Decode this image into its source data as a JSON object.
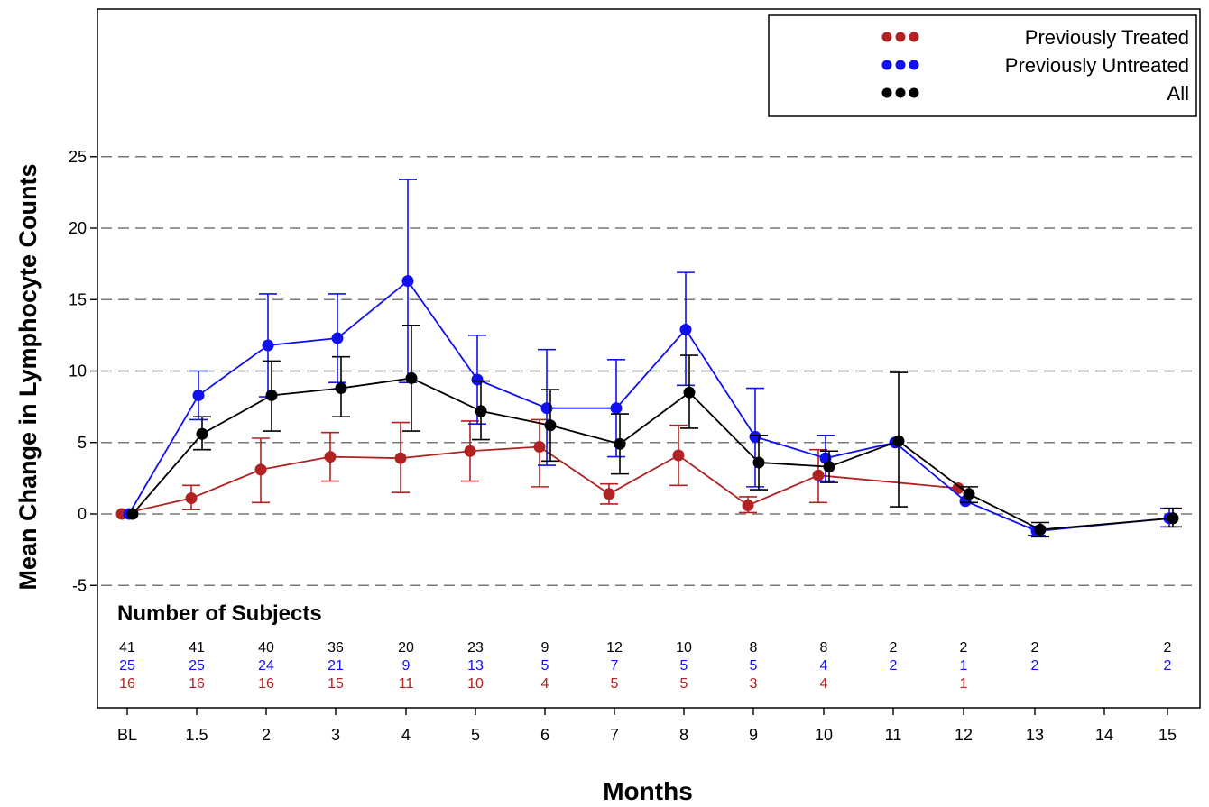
{
  "chart_data": {
    "type": "line",
    "xlabel": "Months",
    "ylabel": "Mean Change in Lymphocyte Counts",
    "ylim": [
      -5,
      25
    ],
    "yticks": [
      -5,
      0,
      5,
      10,
      15,
      20,
      25
    ],
    "categories": [
      "BL",
      "1.5",
      "2",
      "3",
      "4",
      "5",
      "6",
      "7",
      "8",
      "9",
      "10",
      "11",
      "12",
      "13",
      "14",
      "15"
    ],
    "grid": "horizontal dashed",
    "legend_position": "top-right",
    "series": [
      {
        "name": "Previously Treated",
        "color": "#b22222",
        "points": [
          {
            "x": "BL",
            "y": 0,
            "lo": 0,
            "hi": 0
          },
          {
            "x": "1.5",
            "y": 1.1,
            "lo": 0.3,
            "hi": 2.0
          },
          {
            "x": "2",
            "y": 3.1,
            "lo": 0.8,
            "hi": 5.3
          },
          {
            "x": "3",
            "y": 4.0,
            "lo": 2.3,
            "hi": 5.7
          },
          {
            "x": "4",
            "y": 3.9,
            "lo": 1.5,
            "hi": 6.4
          },
          {
            "x": "5",
            "y": 4.4,
            "lo": 2.3,
            "hi": 6.5
          },
          {
            "x": "6",
            "y": 4.7,
            "lo": 1.9,
            "hi": 6.6
          },
          {
            "x": "7",
            "y": 1.4,
            "lo": 0.7,
            "hi": 2.1
          },
          {
            "x": "8",
            "y": 4.1,
            "lo": 2.0,
            "hi": 6.2
          },
          {
            "x": "9",
            "y": 0.6,
            "lo": 0.1,
            "hi": 1.2
          },
          {
            "x": "10",
            "y": 2.7,
            "lo": 0.8,
            "hi": 4.5
          },
          {
            "x": "12",
            "y": 1.8,
            "lo": 1.8,
            "hi": 1.8
          }
        ]
      },
      {
        "name": "Previously Untreated",
        "color": "#1010f0",
        "points": [
          {
            "x": "BL",
            "y": 0,
            "lo": 0,
            "hi": 0
          },
          {
            "x": "1.5",
            "y": 8.3,
            "lo": 6.6,
            "hi": 10.0
          },
          {
            "x": "2",
            "y": 11.8,
            "lo": 8.2,
            "hi": 15.4
          },
          {
            "x": "3",
            "y": 12.3,
            "lo": 9.2,
            "hi": 15.4
          },
          {
            "x": "4",
            "y": 16.3,
            "lo": 9.2,
            "hi": 23.4
          },
          {
            "x": "5",
            "y": 9.4,
            "lo": 6.3,
            "hi": 12.5
          },
          {
            "x": "6",
            "y": 7.4,
            "lo": 3.4,
            "hi": 11.5
          },
          {
            "x": "7",
            "y": 7.4,
            "lo": 4.0,
            "hi": 10.8
          },
          {
            "x": "8",
            "y": 12.9,
            "lo": 9.0,
            "hi": 16.9
          },
          {
            "x": "9",
            "y": 5.4,
            "lo": 1.9,
            "hi": 8.8
          },
          {
            "x": "10",
            "y": 3.9,
            "lo": 2.3,
            "hi": 5.5
          },
          {
            "x": "11",
            "y": 5.0,
            "lo": 5.0,
            "hi": 5.0
          },
          {
            "x": "12",
            "y": 0.9,
            "lo": 0.9,
            "hi": 0.9
          },
          {
            "x": "13",
            "y": -1.2,
            "lo": -1.5,
            "hi": -0.9
          },
          {
            "x": "15",
            "y": -0.3,
            "lo": -0.9,
            "hi": 0.4
          }
        ]
      },
      {
        "name": "All",
        "color": "#000000",
        "points": [
          {
            "x": "BL",
            "y": 0,
            "lo": 0,
            "hi": 0
          },
          {
            "x": "1.5",
            "y": 5.6,
            "lo": 4.5,
            "hi": 6.8
          },
          {
            "x": "2",
            "y": 8.3,
            "lo": 5.8,
            "hi": 10.7
          },
          {
            "x": "3",
            "y": 8.8,
            "lo": 6.8,
            "hi": 11.0
          },
          {
            "x": "4",
            "y": 9.5,
            "lo": 5.8,
            "hi": 13.2
          },
          {
            "x": "5",
            "y": 7.2,
            "lo": 5.2,
            "hi": 9.3
          },
          {
            "x": "6",
            "y": 6.2,
            "lo": 3.7,
            "hi": 8.7
          },
          {
            "x": "7",
            "y": 4.9,
            "lo": 2.8,
            "hi": 7.0
          },
          {
            "x": "8",
            "y": 8.5,
            "lo": 6.0,
            "hi": 11.1
          },
          {
            "x": "9",
            "y": 3.6,
            "lo": 1.7,
            "hi": 5.5
          },
          {
            "x": "10",
            "y": 3.3,
            "lo": 2.2,
            "hi": 4.4
          },
          {
            "x": "11",
            "y": 5.1,
            "lo": 0.5,
            "hi": 9.9
          },
          {
            "x": "12",
            "y": 1.4,
            "lo": 0.8,
            "hi": 1.9
          },
          {
            "x": "13",
            "y": -1.1,
            "lo": -1.6,
            "hi": -0.6
          },
          {
            "x": "15",
            "y": -0.3,
            "lo": -0.9,
            "hi": 0.4
          }
        ]
      }
    ],
    "subjects": {
      "title": "Number of Subjects",
      "rows": [
        {
          "series": "All",
          "color": "#000000",
          "values": [
            "41",
            "41",
            "40",
            "36",
            "20",
            "23",
            "9",
            "12",
            "10",
            "8",
            "8",
            "2",
            "2",
            "2",
            "",
            "2"
          ]
        },
        {
          "series": "Previously Untreated",
          "color": "#1010f0",
          "values": [
            "25",
            "25",
            "24",
            "21",
            "9",
            "13",
            "5",
            "7",
            "5",
            "5",
            "4",
            "2",
            "1",
            "2",
            "",
            "2"
          ]
        },
        {
          "series": "Previously Treated",
          "color": "#b22222",
          "values": [
            "16",
            "16",
            "16",
            "15",
            "11",
            "10",
            "4",
            "5",
            "5",
            "3",
            "4",
            "",
            "1",
            "",
            "",
            ""
          ]
        }
      ]
    }
  }
}
